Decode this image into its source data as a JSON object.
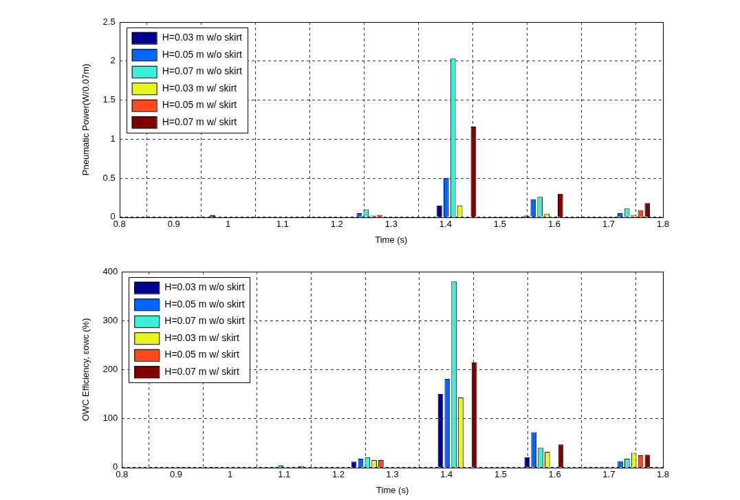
{
  "chart_data": [
    {
      "type": "bar",
      "x_label": "Time (s)",
      "y_label": "Pneumatic Power(W/0.07m)",
      "x": [
        0.94,
        1.1,
        1.26,
        1.42,
        1.58,
        1.74
      ],
      "series": [
        {
          "name": "H=0.03 m w/o skirt",
          "color": "#000090",
          "values": [
            0.01,
            0.01,
            0.01,
            0.15,
            0.02,
            0
          ]
        },
        {
          "name": "H=0.05 m w/o skirt",
          "color": "#0066ff",
          "values": [
            0.01,
            0.01,
            0.05,
            0.5,
            0.23,
            0.05
          ]
        },
        {
          "name": "H=0.07 m w/o skirt",
          "color": "#3cf0d8",
          "values": [
            0.01,
            0.01,
            0.1,
            2.03,
            0.26,
            0.11
          ]
        },
        {
          "name": "H=0.03 m w/ skirt",
          "color": "#e6f520",
          "values": [
            0,
            0,
            0.02,
            0.15,
            0.04,
            0.03
          ]
        },
        {
          "name": "H=0.05 m w/ skirt",
          "color": "#ff4a1a",
          "values": [
            0.01,
            0.01,
            0.03,
            0,
            0,
            0.09
          ]
        },
        {
          "name": "H=0.07 m w/ skirt",
          "color": "#800000",
          "values": [
            0.03,
            0.01,
            0,
            1.16,
            0.3,
            0.18
          ]
        }
      ],
      "xlim": [
        0.8,
        1.8
      ],
      "xticks": [
        0.8,
        0.9,
        1,
        1.1,
        1.2,
        1.3,
        1.4,
        1.5,
        1.6,
        1.7,
        1.8
      ],
      "ylim": [
        0,
        2.5
      ],
      "yticks": [
        0,
        0.5,
        1,
        1.5,
        2,
        2.5
      ],
      "grid": true,
      "legend": "upper left"
    },
    {
      "type": "bar",
      "x_label": "Time (s)",
      "y_label": "OWC Efficiency, εowc (%)",
      "x": [
        0.94,
        1.1,
        1.26,
        1.42,
        1.58,
        1.74
      ],
      "series": [
        {
          "name": "H=0.03 m w/o skirt",
          "color": "#000090",
          "values": [
            1,
            1,
            12,
            150,
            21,
            0
          ]
        },
        {
          "name": "H=0.05 m w/o skirt",
          "color": "#0066ff",
          "values": [
            1,
            1,
            18,
            181,
            72,
            13
          ]
        },
        {
          "name": "H=0.07 m w/o skirt",
          "color": "#3cf0d8",
          "values": [
            1,
            4,
            21,
            380,
            40,
            18
          ]
        },
        {
          "name": "H=0.03 m w/ skirt",
          "color": "#e6f520",
          "values": [
            0,
            0,
            15,
            143,
            32,
            30
          ]
        },
        {
          "name": "H=0.05 m w/ skirt",
          "color": "#ff4a1a",
          "values": [
            1,
            1,
            15,
            0,
            0,
            25
          ]
        },
        {
          "name": "H=0.07 m w/ skirt",
          "color": "#800000",
          "values": [
            1,
            3,
            0,
            215,
            47,
            26
          ]
        }
      ],
      "xlim": [
        0.8,
        1.8
      ],
      "xticks": [
        0.8,
        0.9,
        1,
        1.1,
        1.2,
        1.3,
        1.4,
        1.5,
        1.6,
        1.7,
        1.8
      ],
      "ylim": [
        0,
        400
      ],
      "yticks": [
        0,
        100,
        200,
        300,
        400
      ],
      "grid": true,
      "legend": "upper left"
    }
  ]
}
